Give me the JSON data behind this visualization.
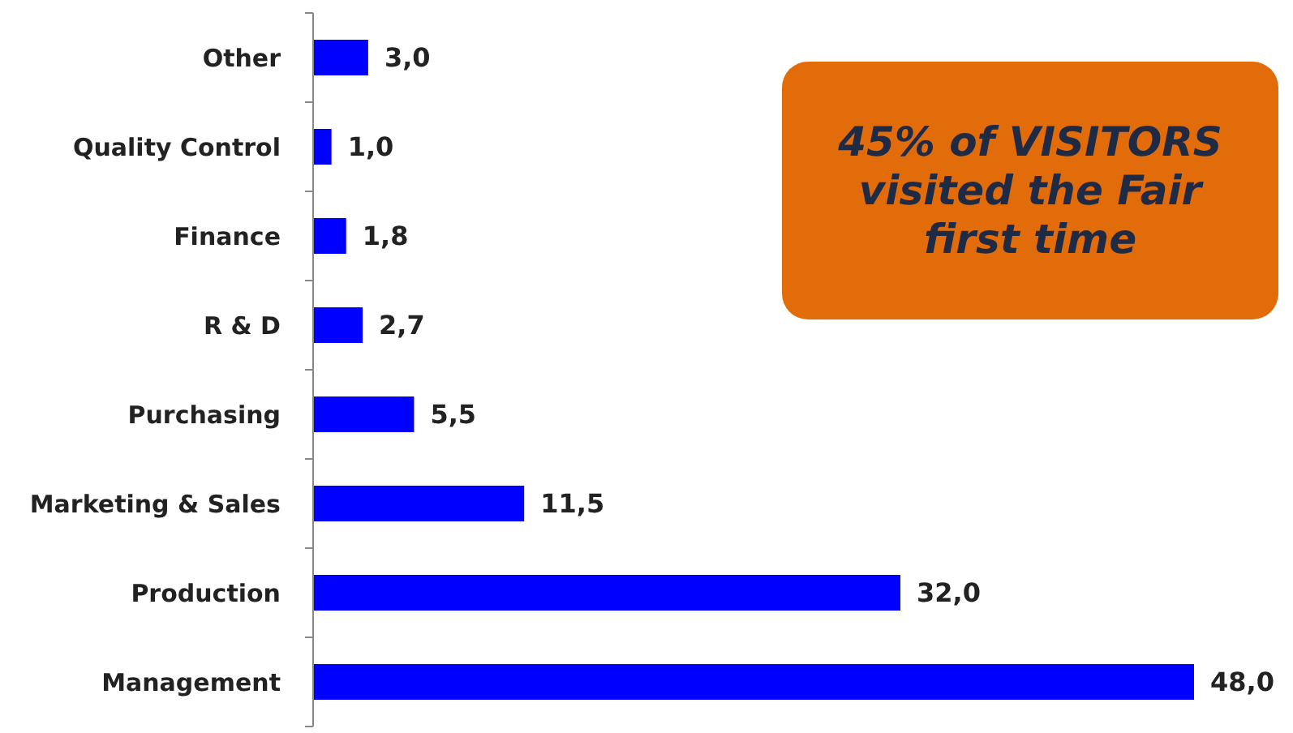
{
  "chart_data": {
    "type": "bar",
    "orientation": "horizontal",
    "categories": [
      "Other",
      "Quality Control",
      "Finance",
      "R & D",
      "Purchasing",
      "Marketing & Sales",
      "Production",
      "Management"
    ],
    "values": [
      3.0,
      1.0,
      1.8,
      2.7,
      5.5,
      11.5,
      32.0,
      48.0
    ],
    "value_labels": [
      "3,0",
      "1,0",
      "1,8",
      "2,7",
      "5,5",
      "11,5",
      "32,0",
      "48,0"
    ],
    "color": "#0000ff",
    "annotations": [
      "45% of VISITORS visited the Fair first time"
    ]
  }
}
